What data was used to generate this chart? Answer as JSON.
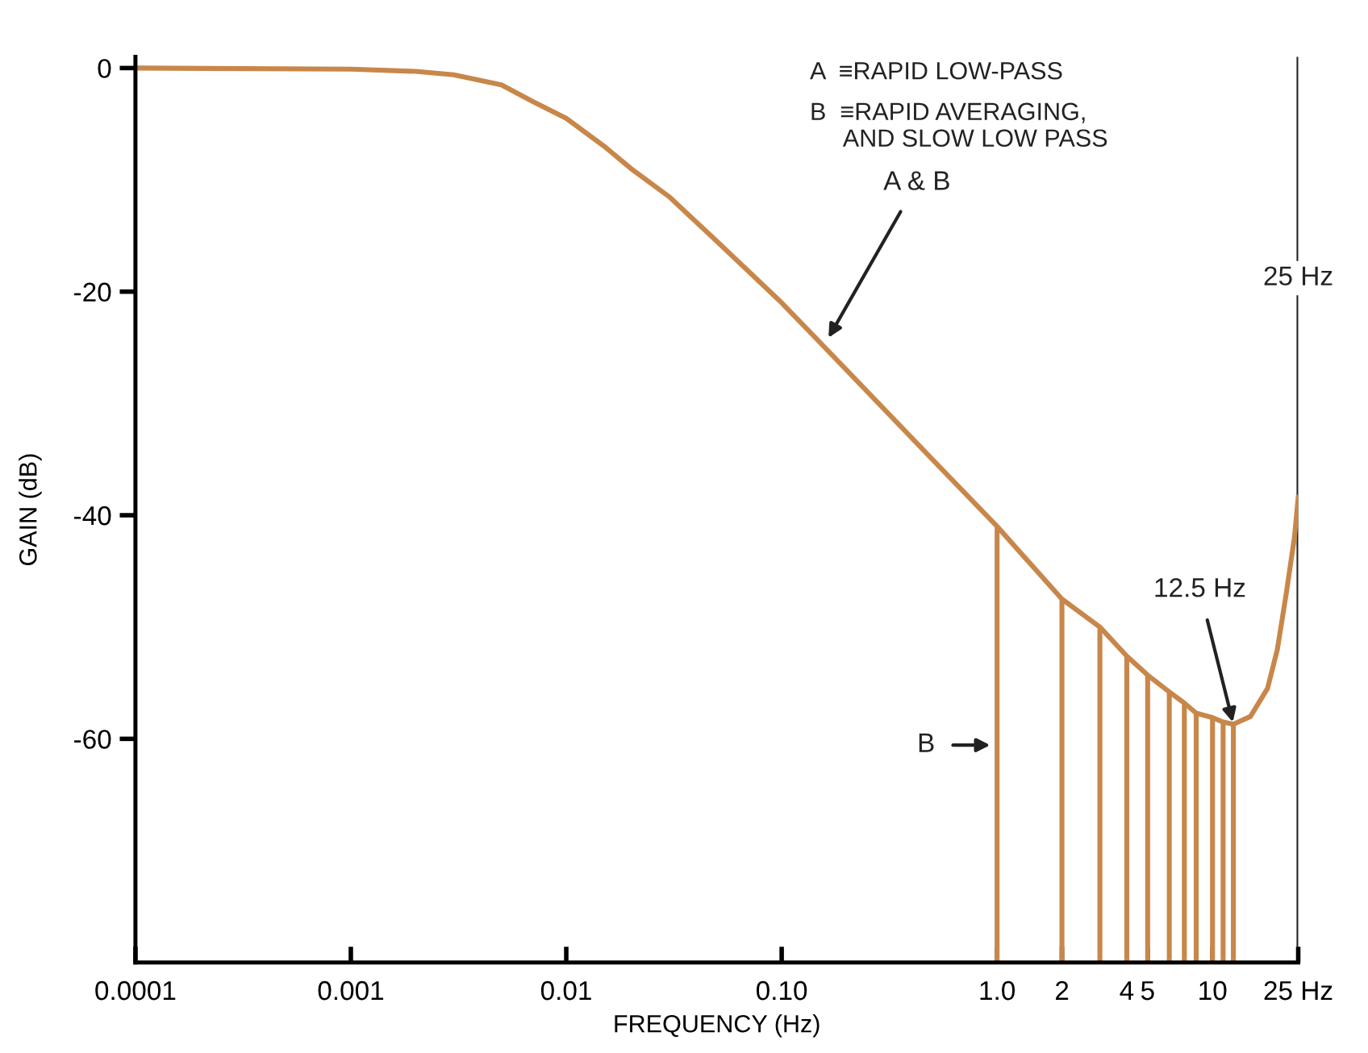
{
  "chart_data": {
    "type": "line",
    "xlabel": "FREQUENCY (Hz)",
    "ylabel": "GAIN (dB)",
    "log": "x",
    "xlim": [
      0.0001,
      25
    ],
    "ylim": [
      -80,
      1
    ],
    "xticks": [
      0.0001,
      0.001,
      0.01,
      {
        "value": 0.1,
        "label": "0.10"
      },
      {
        "value": 1,
        "label": "1.0"
      },
      2,
      4,
      5,
      10,
      {
        "value": 25,
        "label": "25 Hz"
      }
    ],
    "yticks": [
      0,
      -20,
      -40,
      -60
    ],
    "grid": false,
    "legend": false,
    "series": [
      {
        "color": "#c8874a",
        "x": [
          0.0001,
          0.001,
          0.002,
          0.003,
          0.005,
          0.007,
          0.01,
          0.015,
          0.02,
          0.03,
          0.05,
          0.1,
          0.2,
          0.5,
          1,
          2,
          3,
          4,
          5,
          6.3,
          7.4,
          8.4,
          10,
          11.2,
          12.5,
          15,
          18,
          20,
          22,
          24,
          25
        ],
        "values": [
          0,
          -0.1,
          -0.3,
          -0.6,
          -1.5,
          -3,
          -4.5,
          -7,
          -9,
          -11.5,
          -15.5,
          -21,
          -27,
          -35,
          -41,
          -47.5,
          -50,
          -52.6,
          -54.3,
          -55.8,
          -56.8,
          -57.7,
          -58.1,
          -58.5,
          -58.7,
          -58,
          -55.5,
          -52,
          -47,
          -42,
          -38.4
        ]
      },
      {
        "type": "bar",
        "color": "#c8874a",
        "x": [
          1,
          2,
          3,
          4,
          5,
          6.3,
          7.4,
          8.4,
          10,
          11.2,
          12.5
        ],
        "base": [
          -80,
          -80,
          -80,
          -80,
          -80,
          -80,
          -80,
          -80,
          -80,
          -80,
          -80
        ],
        "values": [
          39,
          32.5,
          30,
          27.4,
          25.7,
          24.2,
          23.2,
          22.3,
          21.9,
          21.5,
          21.3
        ]
      }
    ],
    "ref_lines": [
      {
        "axis": "x",
        "value": 25,
        "label": "25 Hz",
        "color": "#222222"
      }
    ],
    "annotations": [
      "A  ≡RAPID LOW-PASS",
      "B  ≡RAPID AVERAGING,\n     AND SLOW LOW PASS",
      {
        "text": "A & B",
        "x": 0.163,
        "y": -24.3
      },
      "B",
      {
        "text": "12.5 Hz",
        "x": 12.5,
        "y": -58.7
      }
    ]
  }
}
